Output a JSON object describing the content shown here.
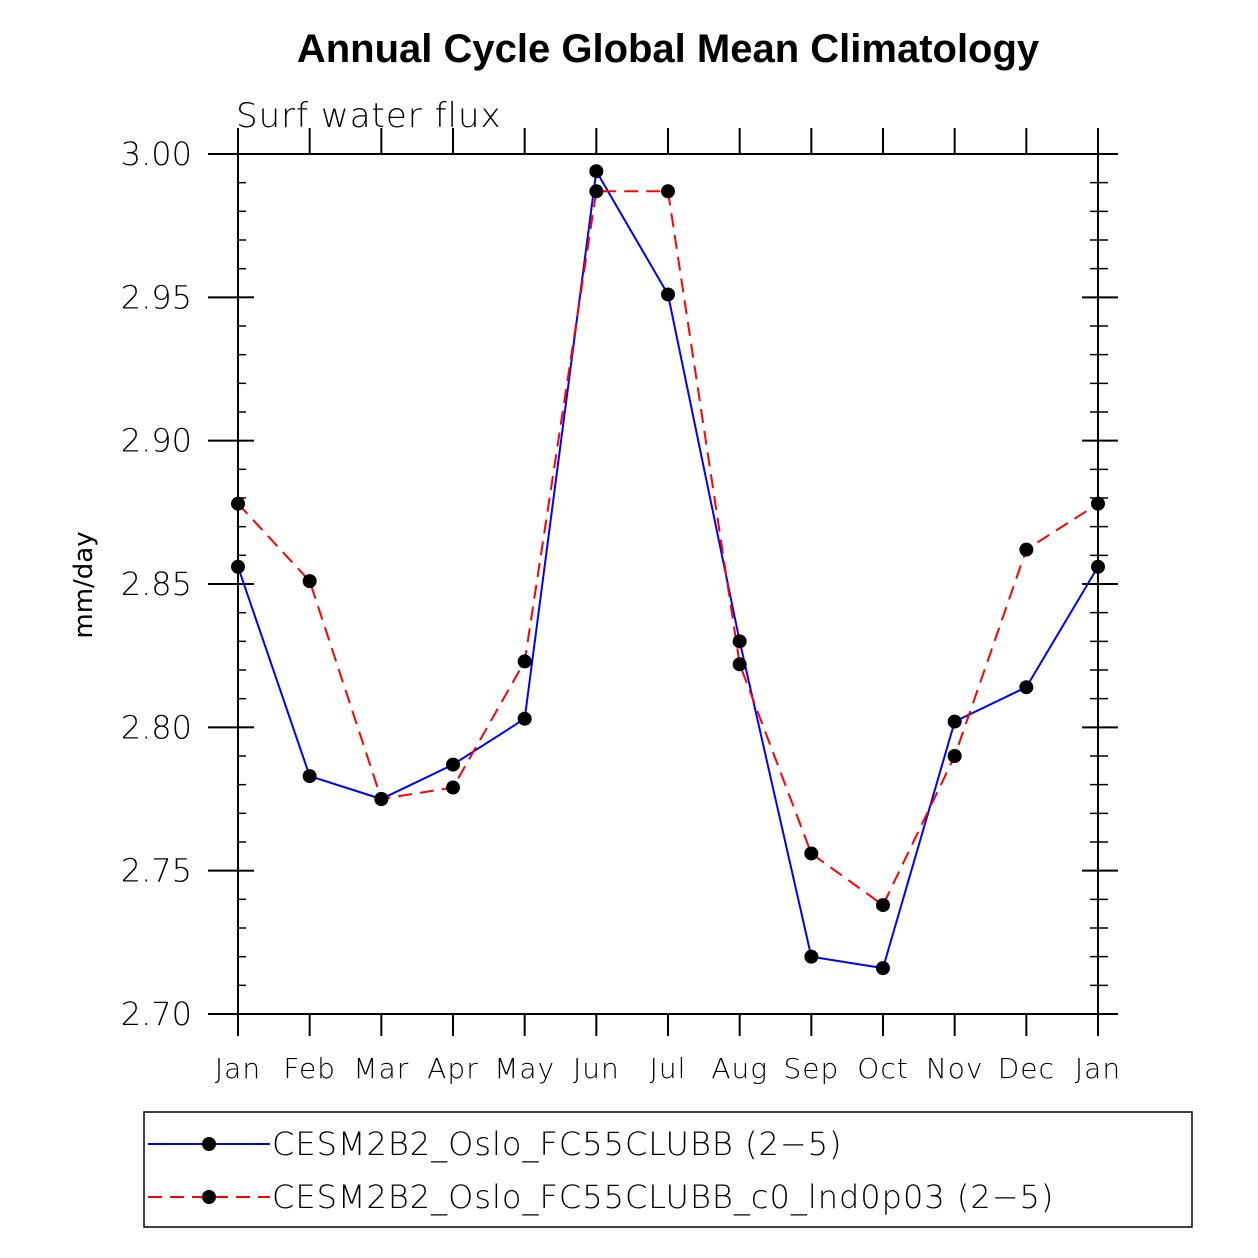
{
  "chart_data": {
    "type": "line",
    "title": "Annual Cycle Global Mean Climatology",
    "subtitle": "Surf water flux",
    "ylabel": "mm/day",
    "xlabel": "",
    "categories": [
      "Jan",
      "Feb",
      "Mar",
      "Apr",
      "May",
      "Jun",
      "Jul",
      "Aug",
      "Sep",
      "Oct",
      "Nov",
      "Dec",
      "Jan"
    ],
    "ylim": [
      2.7,
      3.0
    ],
    "yticks": [
      "2.70",
      "2.75",
      "2.80",
      "2.85",
      "2.90",
      "2.95",
      "3.00"
    ],
    "series": [
      {
        "name": "CESM2B2_Oslo_FC55CLUBB (2−5)",
        "color": "#0000ff",
        "style": "solid",
        "values": [
          2.856,
          2.783,
          2.775,
          2.787,
          2.803,
          2.994,
          2.951,
          2.83,
          2.72,
          2.716,
          2.802,
          2.814,
          2.856
        ]
      },
      {
        "name": "CESM2B2_Oslo_FC55CLUBB_c0_lnd0p03 (2−5)",
        "color": "#ff0000",
        "style": "dashed",
        "values": [
          2.878,
          2.851,
          2.775,
          2.779,
          2.823,
          2.987,
          2.987,
          2.822,
          2.756,
          2.738,
          2.79,
          2.862,
          2.878
        ]
      }
    ],
    "legend": "bottom"
  }
}
